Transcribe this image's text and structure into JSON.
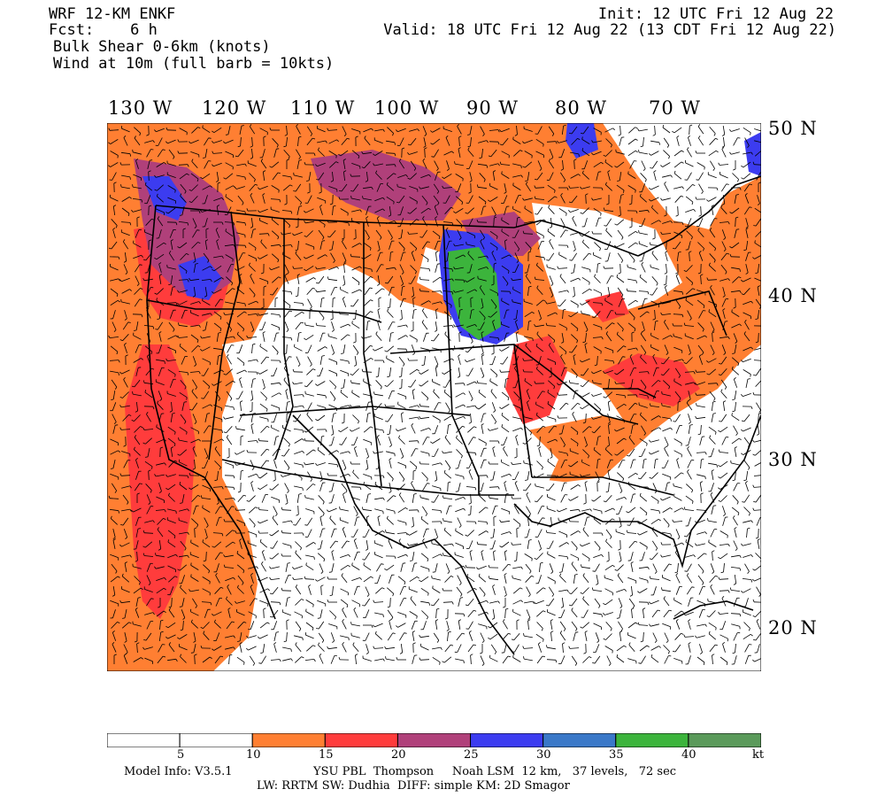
{
  "header": {
    "model": "WRF 12-KM ENKF",
    "fcst": "Fcst:    6 h",
    "field": "Bulk Shear 0-6km (knots)",
    "wind": "Wind at 10m (full barb = 10kts)",
    "init": "Init: 12 UTC Fri 12 Aug 22",
    "valid": "Valid: 18 UTC Fri 12 Aug 22 (13 CDT Fri 12 Aug 22)"
  },
  "lon_labels": [
    "130 W",
    "120 W",
    "110 W",
    "100 W",
    "90 W",
    "80 W",
    "70 W"
  ],
  "lat_labels": [
    "50 N",
    "40 N",
    "30 N",
    "20 N"
  ],
  "legend": {
    "ticks": [
      "5",
      "10",
      "15",
      "20",
      "25",
      "30",
      "35",
      "40",
      "kt"
    ],
    "colors": [
      "#ffffff",
      "#ffffff",
      "#ff7f32",
      "#ff3c3c",
      "#b0407a",
      "#3c3cf0",
      "#3a78c8",
      "#3cb43c",
      "#5a9a5a"
    ]
  },
  "footer": {
    "line1a": "Model Info: V3.5.1",
    "line1b": "YSU PBL  Thompson     Noah LSM  12 km,   37 levels,   72 sec",
    "line2": "LW: RRTM SW: Dudhia  DIFF: simple KM: 2D Smagor"
  },
  "colors": {
    "orange": "#ff7f32",
    "red": "#ff3c3c",
    "purple": "#b0407a",
    "blue": "#3c3cf0",
    "steelblue": "#3a78c8",
    "green": "#3cb43c",
    "darkgreen": "#5a9a5a"
  }
}
